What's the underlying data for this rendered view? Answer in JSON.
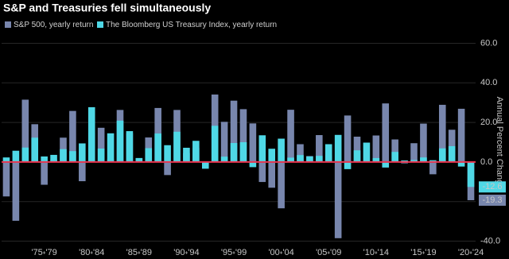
{
  "chart_data": {
    "type": "bar",
    "title": "S&P and Treasuries fell simultaneously",
    "y_label": "Annual Percent Change",
    "x": [
      1973,
      1974,
      1975,
      1976,
      1977,
      1978,
      1979,
      1980,
      1981,
      1982,
      1983,
      1984,
      1985,
      1986,
      1987,
      1988,
      1989,
      1990,
      1991,
      1992,
      1993,
      1994,
      1995,
      1996,
      1997,
      1998,
      1999,
      2000,
      2001,
      2002,
      2003,
      2004,
      2005,
      2006,
      2007,
      2008,
      2009,
      2010,
      2011,
      2012,
      2013,
      2014,
      2015,
      2016,
      2017,
      2018,
      2019,
      2020,
      2021,
      2022
    ],
    "xlim": [
      1972.5,
      2022.5
    ],
    "xticks": [
      {
        "value": 1977,
        "label": "'75-'79"
      },
      {
        "value": 1982,
        "label": "'80-'84"
      },
      {
        "value": 1987,
        "label": "'85-'89"
      },
      {
        "value": 1992,
        "label": "'90-'94"
      },
      {
        "value": 1997,
        "label": "'95-'99"
      },
      {
        "value": 2002,
        "label": "'00-'04"
      },
      {
        "value": 2007,
        "label": "'05-'09"
      },
      {
        "value": 2012,
        "label": "'10-'14"
      },
      {
        "value": 2017,
        "label": "'15-'19"
      },
      {
        "value": 2022,
        "label": "'20-'24"
      }
    ],
    "ylim": [
      -45,
      65
    ],
    "yticks": [
      {
        "value": -40,
        "label": "-40.0"
      },
      {
        "value": -20,
        "label": "-20.0"
      },
      {
        "value": 0,
        "label": "0.0"
      },
      {
        "value": 20,
        "label": "20.0"
      },
      {
        "value": 40,
        "label": "40.0"
      },
      {
        "value": 60,
        "label": "60.0"
      }
    ],
    "grid": true,
    "zero_line_color": "#e8354f",
    "label_last": true,
    "series": [
      {
        "name": "S&P 500, yearly return",
        "color": "#7886ad",
        "values": [
          -17.4,
          -29.7,
          31.5,
          19.1,
          -11.5,
          1.1,
          12.3,
          25.8,
          -9.7,
          14.8,
          17.3,
          1.4,
          26.3,
          14.6,
          2.0,
          12.4,
          27.3,
          -6.6,
          26.3,
          4.5,
          7.1,
          -1.5,
          34.1,
          20.3,
          31.0,
          26.7,
          19.5,
          -10.1,
          -13.0,
          -23.4,
          26.4,
          9.0,
          3.0,
          13.6,
          3.5,
          -38.5,
          23.5,
          12.8,
          0.0,
          13.4,
          29.6,
          11.4,
          -0.7,
          9.5,
          19.4,
          -6.2,
          28.9,
          16.3,
          26.9,
          -19.3
        ]
      },
      {
        "name": "The Bloomberg US Treasury Index, yearly return",
        "color": "#4fd8e6",
        "values": [
          2.3,
          5.7,
          7.3,
          12.3,
          2.8,
          3.6,
          6.5,
          5.5,
          9.4,
          27.7,
          6.8,
          14.5,
          20.9,
          15.6,
          2.0,
          7.0,
          14.4,
          8.5,
          15.3,
          7.2,
          10.7,
          -3.4,
          18.3,
          2.7,
          9.6,
          10.0,
          -2.6,
          13.5,
          6.7,
          11.8,
          2.2,
          3.5,
          2.8,
          3.1,
          9.0,
          13.7,
          -3.6,
          5.9,
          9.8,
          2.0,
          -2.8,
          5.1,
          0.8,
          1.0,
          2.3,
          0.9,
          6.9,
          8.0,
          -2.3,
          -12.6
        ]
      }
    ]
  }
}
